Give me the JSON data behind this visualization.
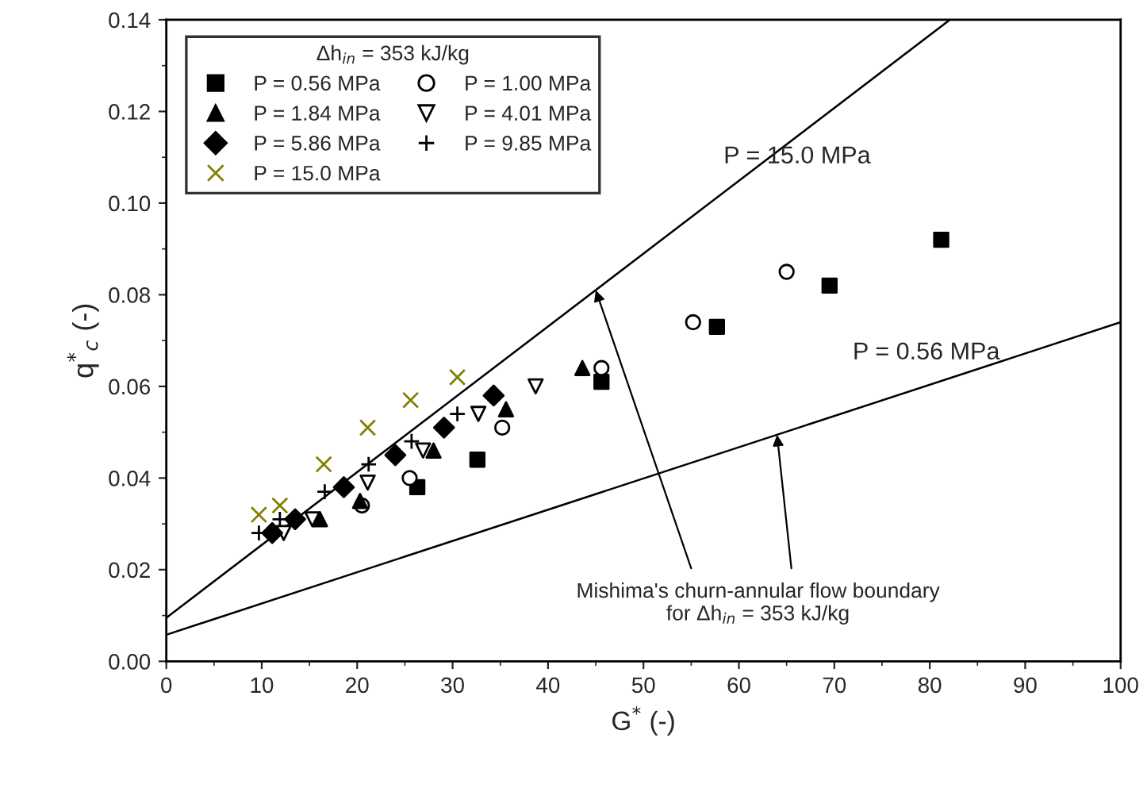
{
  "chart_data": {
    "type": "scatter",
    "xlabel": "G$^{*}$ (-)",
    "ylabel": "q$^{*}$$_{c}$ (-)",
    "legend_title": "Δh$_{in}$ = 353 kJ/kg",
    "legend": "top left",
    "grid": false,
    "xlim": [
      0,
      100
    ],
    "xticks": [
      0,
      10,
      20,
      30,
      40,
      50,
      60,
      70,
      80,
      90,
      100
    ],
    "ylim": [
      0,
      0.14
    ],
    "yticks": [
      {
        "value": 0,
        "label": "0.00"
      },
      {
        "value": 0.02,
        "label": "0.02"
      },
      {
        "value": 0.04,
        "label": "0.04"
      },
      {
        "value": 0.06,
        "label": "0.06"
      },
      {
        "value": 0.08,
        "label": "0.08"
      },
      {
        "value": 0.1,
        "label": "0.10"
      },
      {
        "value": 0.12,
        "label": "0.12"
      },
      {
        "value": 0.14,
        "label": "0.14"
      }
    ],
    "series": [
      {
        "name": "P = 0.56 MPa",
        "color": "#000000",
        "marker": "square",
        "x": [
          26.3,
          32.6,
          45.6,
          57.7,
          69.5,
          81.2
        ],
        "values": [
          0.038,
          0.044,
          0.061,
          0.073,
          0.082,
          0.092
        ]
      },
      {
        "name": "P = 1.00 MPa",
        "color": "#000000",
        "marker": "circle_open",
        "x": [
          20.5,
          25.5,
          35.2,
          45.6,
          55.2,
          65.0
        ],
        "values": [
          0.034,
          0.04,
          0.051,
          0.064,
          0.074,
          0.085
        ]
      },
      {
        "name": "P = 1.84 MPa",
        "color": "#000000",
        "marker": "triangle",
        "x": [
          16.1,
          20.3,
          28.0,
          35.6,
          43.6
        ],
        "values": [
          0.031,
          0.035,
          0.046,
          0.055,
          0.064
        ]
      },
      {
        "name": "P = 4.01 MPa",
        "color": "#000000",
        "marker": "triangle_down_open",
        "x": [
          12.3,
          15.3,
          21.1,
          26.9,
          32.7,
          38.7
        ],
        "values": [
          0.028,
          0.031,
          0.039,
          0.046,
          0.054,
          0.06
        ]
      },
      {
        "name": "P = 5.86 MPa",
        "color": "#000000",
        "marker": "diamond",
        "x": [
          11.1,
          13.5,
          18.6,
          24.0,
          29.1,
          34.3
        ],
        "values": [
          0.028,
          0.031,
          0.038,
          0.045,
          0.051,
          0.058
        ]
      },
      {
        "name": "P = 9.85 MPa",
        "color": "#000000",
        "marker": "plus",
        "x": [
          9.7,
          11.9,
          16.6,
          21.2,
          25.7,
          30.5
        ],
        "values": [
          0.028,
          0.031,
          0.037,
          0.043,
          0.048,
          0.054
        ]
      },
      {
        "name": "P = 15.0 MPa",
        "color": "#808000",
        "marker": "cross",
        "x": [
          9.7,
          11.9,
          16.5,
          21.1,
          25.6,
          30.5
        ],
        "values": [
          0.032,
          0.034,
          0.043,
          0.051,
          0.057,
          0.062
        ]
      },
      {
        "type": "line",
        "name": "P = 15.0 MPa",
        "color": "#000000",
        "x": [
          0,
          82.1
        ],
        "values": [
          0.0095,
          0.14
        ]
      },
      {
        "type": "line",
        "name": "P = 0.56 MPa",
        "color": "#000000",
        "x": [
          0,
          100
        ],
        "values": [
          0.0058,
          0.074
        ]
      }
    ],
    "annotations": [
      {
        "text": "Mishima's churn-annular flow boundary\nfor Δh$_{in}$ = 353 kJ/kg",
        "x": 45,
        "y": 0.081
      }
    ]
  }
}
